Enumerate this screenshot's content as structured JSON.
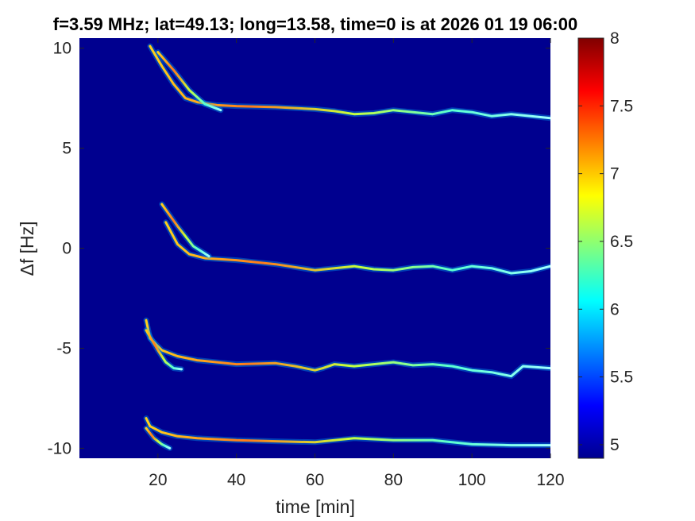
{
  "chart_data": {
    "type": "heatmap",
    "title": "f=3.59 MHz;  lat=49.13; long=13.58, time=0 is at 2026 01 19 06:00",
    "xlabel": "time [min]",
    "ylabel": "Δf [Hz]",
    "xlim": [
      0,
      120
    ],
    "ylim": [
      -10.5,
      10.5
    ],
    "x_ticks": [
      20,
      40,
      60,
      80,
      100,
      120
    ],
    "y_ticks": [
      -10,
      -5,
      0,
      5,
      10
    ],
    "x_tick_labels": [
      "20",
      "40",
      "60",
      "80",
      "100",
      "120"
    ],
    "y_tick_labels": [
      "-10",
      "-5",
      "0",
      "5",
      "10"
    ],
    "colorbar": {
      "range": [
        4.9,
        8
      ],
      "colormap": "jet",
      "ticks": [
        5,
        5.5,
        6,
        6.5,
        7,
        7.5,
        8
      ],
      "tick_labels": [
        "5",
        "5.5",
        "6",
        "6.5",
        "7",
        "7.5",
        "8"
      ]
    },
    "grid": false,
    "background_color": "#00008f",
    "traces": [
      {
        "name": "",
        "points": [
          [
            18,
            10.1
          ],
          [
            21,
            9.1
          ],
          [
            24,
            8.2
          ],
          [
            27,
            7.5
          ],
          [
            30,
            7.3
          ],
          [
            35,
            7.15
          ],
          [
            40,
            7.1
          ],
          [
            50,
            7.05
          ],
          [
            60,
            6.95
          ],
          [
            65,
            6.85
          ],
          [
            70,
            6.7
          ],
          [
            75,
            6.75
          ],
          [
            80,
            6.9
          ],
          [
            85,
            6.8
          ],
          [
            90,
            6.7
          ],
          [
            95,
            6.9
          ],
          [
            100,
            6.8
          ],
          [
            105,
            6.6
          ],
          [
            110,
            6.7
          ],
          [
            115,
            6.6
          ],
          [
            120,
            6.5
          ]
        ]
      },
      {
        "name": "",
        "points": [
          [
            22,
            1.3
          ],
          [
            25,
            0.2
          ],
          [
            28,
            -0.3
          ],
          [
            32,
            -0.5
          ],
          [
            40,
            -0.6
          ],
          [
            50,
            -0.8
          ],
          [
            60,
            -1.1
          ],
          [
            65,
            -1.0
          ],
          [
            70,
            -0.9
          ],
          [
            75,
            -1.05
          ],
          [
            80,
            -1.1
          ],
          [
            85,
            -0.95
          ],
          [
            90,
            -0.9
          ],
          [
            95,
            -1.1
          ],
          [
            100,
            -0.9
          ],
          [
            105,
            -1.0
          ],
          [
            110,
            -1.25
          ],
          [
            115,
            -1.15
          ],
          [
            120,
            -0.9
          ]
        ]
      },
      {
        "name": "",
        "points": [
          [
            17,
            -3.6
          ],
          [
            18,
            -4.5
          ],
          [
            21,
            -5.1
          ],
          [
            25,
            -5.4
          ],
          [
            30,
            -5.6
          ],
          [
            40,
            -5.8
          ],
          [
            50,
            -5.75
          ],
          [
            55,
            -5.9
          ],
          [
            60,
            -6.1
          ],
          [
            62,
            -6.0
          ],
          [
            65,
            -5.8
          ],
          [
            70,
            -5.9
          ],
          [
            75,
            -5.8
          ],
          [
            80,
            -5.7
          ],
          [
            85,
            -5.85
          ],
          [
            90,
            -5.8
          ],
          [
            95,
            -5.9
          ],
          [
            100,
            -6.1
          ],
          [
            105,
            -6.2
          ],
          [
            110,
            -6.4
          ],
          [
            113,
            -5.9
          ],
          [
            120,
            -6.0
          ]
        ]
      },
      {
        "name": "",
        "points": [
          [
            17,
            -8.5
          ],
          [
            18,
            -8.9
          ],
          [
            21,
            -9.2
          ],
          [
            25,
            -9.4
          ],
          [
            30,
            -9.5
          ],
          [
            40,
            -9.6
          ],
          [
            50,
            -9.65
          ],
          [
            60,
            -9.7
          ],
          [
            70,
            -9.5
          ],
          [
            80,
            -9.6
          ],
          [
            90,
            -9.6
          ],
          [
            100,
            -9.8
          ],
          [
            110,
            -9.85
          ],
          [
            120,
            -9.85
          ]
        ]
      },
      {
        "name": "",
        "points": [
          [
            17,
            -4.1
          ],
          [
            20,
            -5.1
          ],
          [
            22,
            -5.7
          ],
          [
            24,
            -6.0
          ],
          [
            26,
            -6.05
          ]
        ]
      },
      {
        "name": "",
        "points": [
          [
            17,
            -9.0
          ],
          [
            19,
            -9.5
          ],
          [
            21,
            -9.8
          ],
          [
            23,
            -10.0
          ]
        ]
      },
      {
        "name": "",
        "points": [
          [
            20,
            9.8
          ],
          [
            24,
            8.9
          ],
          [
            28,
            7.9
          ],
          [
            32,
            7.2
          ],
          [
            36,
            6.9
          ]
        ]
      },
      {
        "name": "",
        "points": [
          [
            21,
            2.2
          ],
          [
            25,
            1.1
          ],
          [
            29,
            0.1
          ],
          [
            33,
            -0.4
          ]
        ]
      }
    ]
  }
}
